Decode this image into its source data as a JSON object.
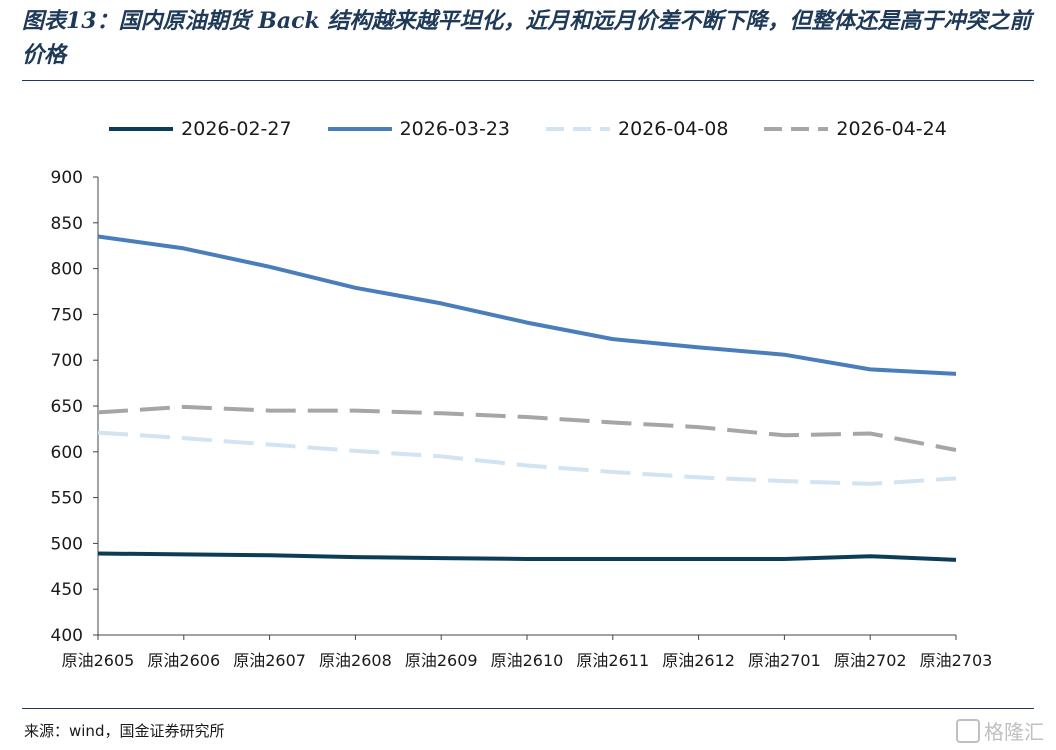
{
  "title": "图表13：国内原油期货 Back 结构越来越平坦化，近月和远月价差不断下降，但整体还是高于冲突之前价格",
  "source": "来源：wind，国金证券研究所",
  "watermark": "格隆汇",
  "chart_data": {
    "type": "line",
    "categories": [
      "原油2605",
      "原油2606",
      "原油2607",
      "原油2608",
      "原油2609",
      "原油2610",
      "原油2611",
      "原油2612",
      "原油2701",
      "原油2702",
      "原油2703"
    ],
    "ylim": [
      400,
      900
    ],
    "yticks": [
      400,
      450,
      500,
      550,
      600,
      650,
      700,
      750,
      800,
      850,
      900
    ],
    "grid": false,
    "legend_position": "top",
    "series": [
      {
        "name": "2026-02-27",
        "color": "#0d3d56",
        "dash": "solid",
        "values": [
          489,
          488,
          487,
          485,
          484,
          483,
          483,
          483,
          483,
          486,
          482
        ]
      },
      {
        "name": "2026-03-23",
        "color": "#4a7ebb",
        "dash": "solid",
        "values": [
          835,
          822,
          802,
          779,
          762,
          741,
          723,
          714,
          706,
          690,
          685
        ]
      },
      {
        "name": "2026-04-08",
        "color": "#d2e3f1",
        "dash": "dashed",
        "values": [
          621,
          615,
          608,
          601,
          595,
          585,
          578,
          572,
          568,
          565,
          571
        ]
      },
      {
        "name": "2026-04-24",
        "color": "#a6a6a6",
        "dash": "dashed",
        "values": [
          643,
          649,
          645,
          645,
          642,
          638,
          632,
          627,
          618,
          620,
          602
        ]
      }
    ]
  }
}
